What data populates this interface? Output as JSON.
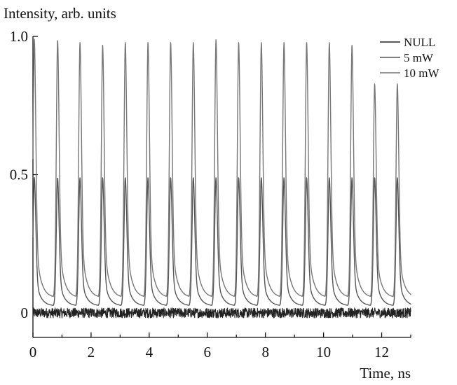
{
  "chart_data": {
    "type": "line",
    "title": "",
    "ylabel": "Intensity, arb. units",
    "xlabel": "Time, ns",
    "xlim": [
      0,
      13
    ],
    "ylim": [
      -0.03,
      1.0
    ],
    "x_ticks": [
      0,
      2,
      4,
      6,
      8,
      10,
      12
    ],
    "y_ticks": [
      0,
      0.5,
      1.0
    ],
    "x_tick_labels": [
      "0",
      "2",
      "4",
      "6",
      "8",
      "10",
      "12"
    ],
    "y_tick_labels": [
      "0",
      "0.5",
      "1.0"
    ],
    "grid": false,
    "legend_position": "top-right",
    "pulse_period_ns": 0.78,
    "series": [
      {
        "name": "NULL",
        "color": "#222222",
        "description_values": "noise around 0",
        "baseline": 0.0,
        "noise_amplitude": 0.02
      },
      {
        "name": "5 mW",
        "color": "#555555",
        "peak_x": [
          0.05,
          0.85,
          1.62,
          2.4,
          3.18,
          3.96,
          4.74,
          5.52,
          6.3,
          7.08,
          7.86,
          8.64,
          9.42,
          10.2,
          10.98,
          11.76,
          12.54
        ],
        "peak_y": [
          0.49,
          0.49,
          0.49,
          0.49,
          0.49,
          0.49,
          0.49,
          0.49,
          0.49,
          0.49,
          0.49,
          0.49,
          0.49,
          0.49,
          0.49,
          0.49,
          0.49
        ],
        "trough_y": 0.025
      },
      {
        "name": "10 mW",
        "color": "#777777",
        "peak_x": [
          0.05,
          0.85,
          1.62,
          2.4,
          3.18,
          3.96,
          4.74,
          5.52,
          6.3,
          7.08,
          7.86,
          8.64,
          9.42,
          10.2,
          10.98,
          11.76,
          12.54
        ],
        "peak_y": [
          0.99,
          0.99,
          0.98,
          0.97,
          0.98,
          0.98,
          0.98,
          0.98,
          0.99,
          0.98,
          0.98,
          0.98,
          0.98,
          0.98,
          0.97,
          0.83,
          0.83
        ],
        "trough_y": 0.055
      }
    ]
  }
}
